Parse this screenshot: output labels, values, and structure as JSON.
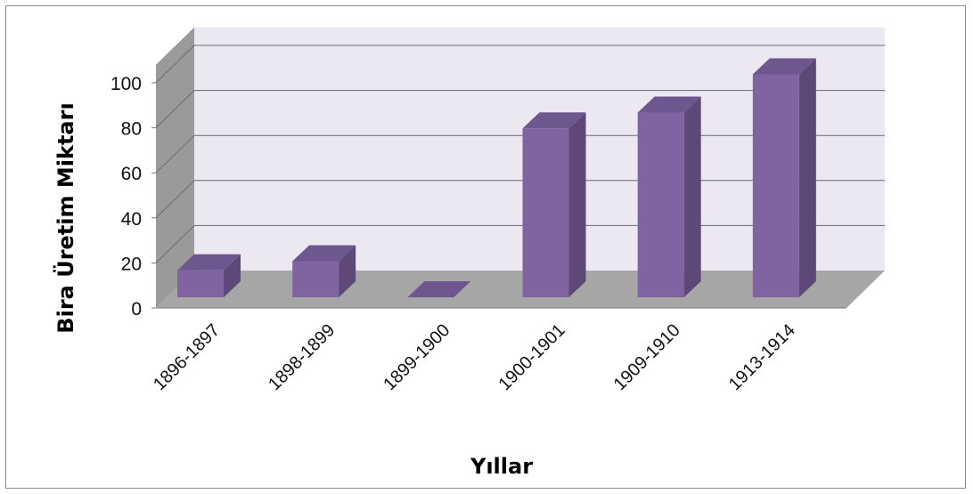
{
  "chart_data": {
    "type": "bar",
    "categories": [
      "1896-1897",
      "1898-1899",
      "1899-1900",
      "1900-1901",
      "1909-1910",
      "1913-1914"
    ],
    "values": [
      12,
      16,
      0,
      75,
      82,
      99
    ],
    "xlabel": "Yıllar",
    "ylabel": "Bira  Üretim Miktarı",
    "ylim": [
      0,
      100
    ],
    "yticks": [
      0,
      20,
      40,
      60,
      80,
      100
    ],
    "grid": true,
    "legend": "none",
    "three_d": true
  },
  "colors": {
    "bar_front": "#8064a2",
    "bar_side": "#5d4878",
    "bar_top": "#6e568f",
    "back_wall": "#ebe8f2",
    "side_wall": "#9a9a9a",
    "floor": "#a6a6a6",
    "gridline": "#6b6b6b"
  }
}
